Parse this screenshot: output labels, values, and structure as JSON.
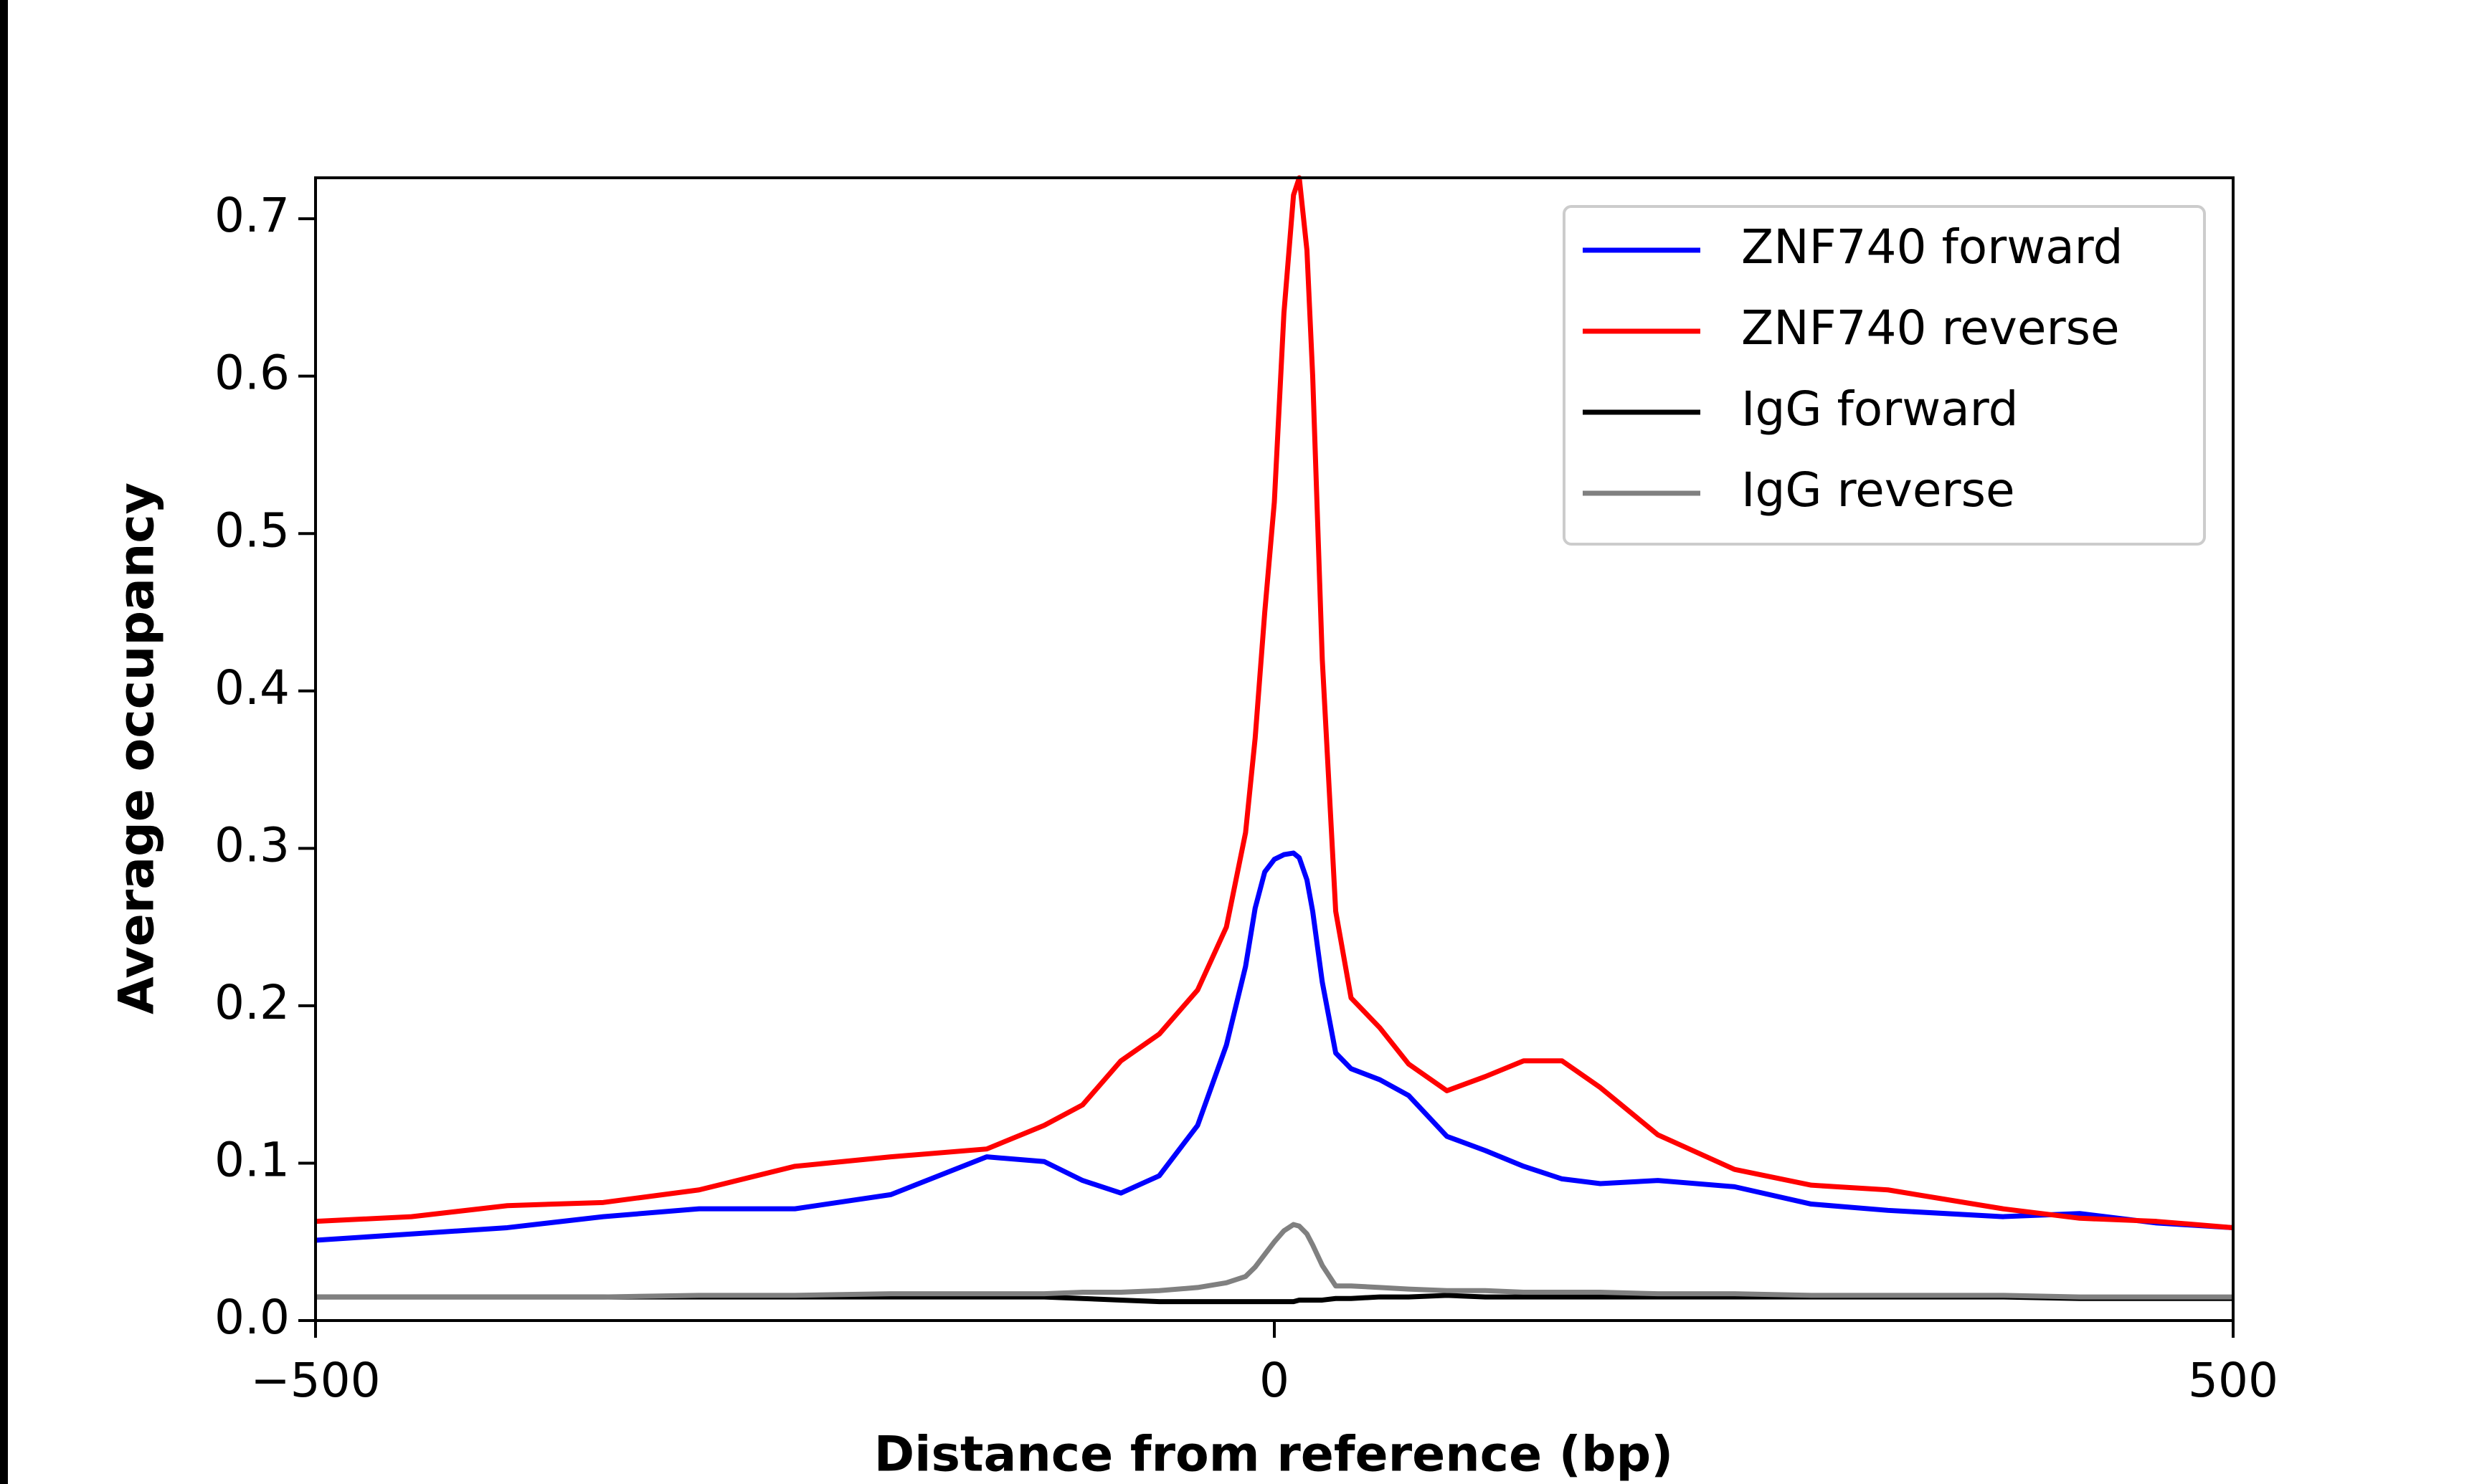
{
  "chart_data": {
    "type": "line",
    "xlabel": "Distance from reference (bp)",
    "ylabel": "Average occupancy",
    "x": [
      -500,
      -450,
      -400,
      -350,
      -300,
      -250,
      -200,
      -150,
      -120,
      -100,
      -80,
      -60,
      -40,
      -25,
      -15,
      -10,
      -5,
      0,
      5,
      10,
      13,
      17,
      20,
      25,
      32,
      40,
      55,
      70,
      90,
      110,
      130,
      150,
      170,
      200,
      240,
      280,
      320,
      380,
      420,
      460,
      500
    ],
    "series": [
      {
        "name": "ZNF740 forward",
        "color": "#0000ff",
        "values": [
          0.051,
          0.055,
          0.059,
          0.066,
          0.071,
          0.071,
          0.08,
          0.104,
          0.101,
          0.089,
          0.081,
          0.092,
          0.124,
          0.175,
          0.225,
          0.262,
          0.285,
          0.293,
          0.296,
          0.297,
          0.294,
          0.28,
          0.26,
          0.215,
          0.17,
          0.16,
          0.153,
          0.143,
          0.117,
          0.108,
          0.098,
          0.09,
          0.087,
          0.089,
          0.085,
          0.074,
          0.07,
          0.066,
          0.068,
          0.062,
          0.059
        ]
      },
      {
        "name": "ZNF740 reverse",
        "color": "#ff0000",
        "values": [
          0.063,
          0.066,
          0.073,
          0.075,
          0.083,
          0.098,
          0.104,
          0.109,
          0.124,
          0.137,
          0.165,
          0.182,
          0.21,
          0.25,
          0.31,
          0.37,
          0.45,
          0.52,
          0.64,
          0.715,
          0.726,
          0.68,
          0.6,
          0.42,
          0.26,
          0.205,
          0.186,
          0.163,
          0.146,
          0.155,
          0.165,
          0.165,
          0.148,
          0.118,
          0.096,
          0.086,
          0.083,
          0.071,
          0.065,
          0.063,
          0.059
        ]
      },
      {
        "name": "IgG forward",
        "color": "#000000",
        "values": [
          0.015,
          0.015,
          0.015,
          0.015,
          0.015,
          0.015,
          0.015,
          0.015,
          0.015,
          0.014,
          0.013,
          0.012,
          0.012,
          0.012,
          0.012,
          0.012,
          0.012,
          0.012,
          0.012,
          0.012,
          0.013,
          0.013,
          0.013,
          0.013,
          0.014,
          0.014,
          0.015,
          0.015,
          0.016,
          0.015,
          0.015,
          0.015,
          0.015,
          0.015,
          0.015,
          0.015,
          0.015,
          0.015,
          0.014,
          0.014,
          0.014
        ]
      },
      {
        "name": "IgG reverse",
        "color": "#808080",
        "values": [
          0.015,
          0.015,
          0.015,
          0.015,
          0.016,
          0.016,
          0.017,
          0.017,
          0.017,
          0.018,
          0.018,
          0.019,
          0.021,
          0.024,
          0.028,
          0.034,
          0.042,
          0.05,
          0.057,
          0.061,
          0.06,
          0.055,
          0.048,
          0.035,
          0.022,
          0.022,
          0.021,
          0.02,
          0.019,
          0.019,
          0.018,
          0.018,
          0.018,
          0.017,
          0.017,
          0.016,
          0.016,
          0.016,
          0.015,
          0.015,
          0.015
        ]
      }
    ],
    "xlim": [
      -500,
      500
    ],
    "xticks": [
      {
        "value": -500,
        "label": "−500"
      },
      0,
      500
    ],
    "ylim": [
      0,
      0.726
    ],
    "yticks": [
      {
        "value": 0,
        "label": "0.0"
      },
      0.1,
      0.2,
      0.3,
      0.4,
      0.5,
      0.6,
      0.7
    ],
    "legend": "upper right",
    "grid": false
  }
}
